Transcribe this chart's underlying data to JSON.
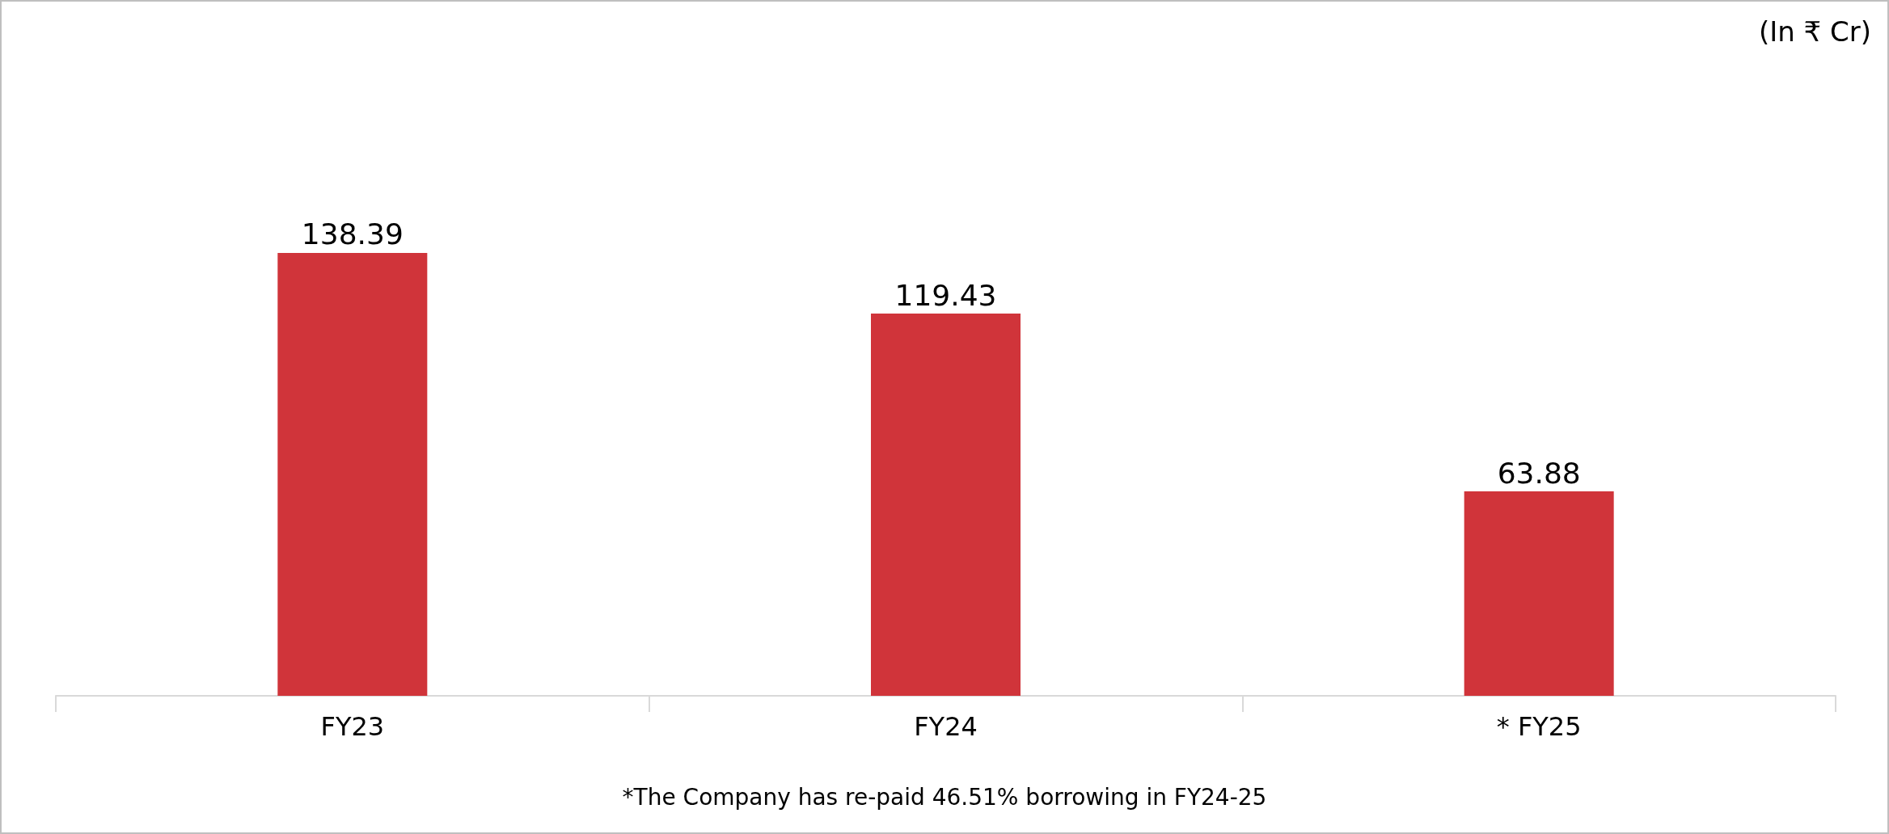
{
  "chart_data": {
    "type": "bar",
    "categories": [
      "FY23",
      "FY24",
      "* FY25"
    ],
    "values": [
      138.39,
      119.43,
      63.88
    ],
    "color": "#d0343a",
    "data_labels": true,
    "annotations": [
      "(In ₹ Cr)",
      "*The Company has re-paid 46.51% borrowing in FY24-25"
    ]
  }
}
